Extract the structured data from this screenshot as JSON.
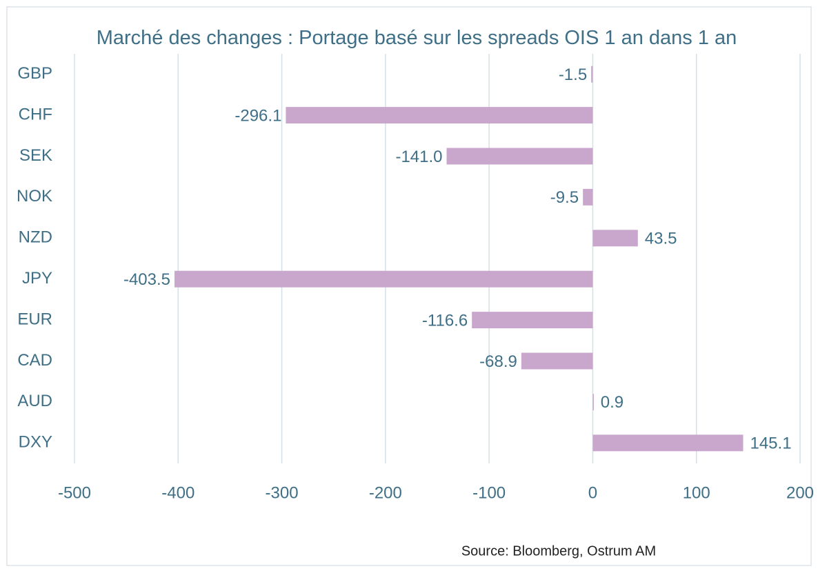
{
  "chart_data": {
    "type": "bar",
    "orientation": "horizontal",
    "title": "Marché des changes : Portage basé sur les spreads OIS 1 an dans 1 an",
    "categories": [
      "GBP",
      "CHF",
      "SEK",
      "NOK",
      "NZD",
      "JPY",
      "EUR",
      "CAD",
      "AUD",
      "DXY"
    ],
    "values": [
      -1.5,
      -296.1,
      -141.0,
      -9.5,
      43.5,
      -403.5,
      -116.6,
      -68.9,
      0.9,
      145.1
    ],
    "value_labels": [
      "-1.5",
      "-296.1",
      "-141.0",
      "-9.5",
      "43.5",
      "-403.5",
      "-116.6",
      "-68.9",
      "0.9",
      "145.1"
    ],
    "color": "#c9a7cd",
    "xlim": [
      -500,
      200
    ],
    "xticks": [
      -500,
      -400,
      -300,
      -200,
      -100,
      0,
      100,
      200
    ],
    "grid": true,
    "source": "Source: Bloomberg, Ostrum AM"
  }
}
